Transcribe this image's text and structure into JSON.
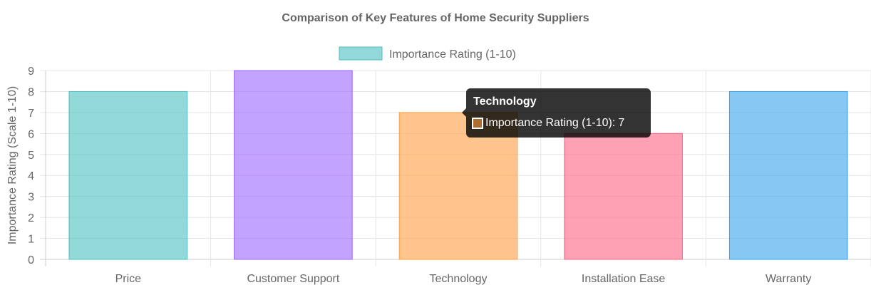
{
  "chart_data": {
    "type": "bar",
    "title": "Comparison of Key Features of Home Security Suppliers",
    "categories": [
      "Price",
      "Customer Support",
      "Technology",
      "Installation Ease",
      "Warranty"
    ],
    "series": [
      {
        "name": "Importance Rating (1-10)",
        "values": [
          8,
          9,
          7,
          6,
          8
        ],
        "colors": [
          "#4bc0c0",
          "#9966ff",
          "#ff9f40",
          "#ff6384",
          "#36a2eb"
        ]
      }
    ],
    "xlabel": "",
    "ylabel": "Importance Rating (Scale 1-10)",
    "ylim": [
      0,
      9
    ],
    "yticks": [
      "0",
      "1",
      "2",
      "3",
      "4",
      "5",
      "6",
      "7",
      "8",
      "9"
    ],
    "grid": true,
    "legend_position": "top",
    "legend_swatch_color": "#4bc0c0"
  },
  "tooltip": {
    "title": "Technology",
    "label": "Importance Rating (1-10):",
    "value": "7",
    "swatch_color": "#ff9f40"
  }
}
